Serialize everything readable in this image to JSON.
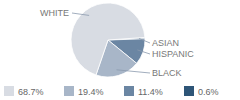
{
  "chart_data": {
    "type": "pie",
    "categories": [
      "WHITE",
      "BLACK",
      "HISPANIC",
      "ASIAN"
    ],
    "values": [
      68.7,
      19.4,
      11.4,
      0.6
    ],
    "value_labels": [
      "68.7%",
      "19.4%",
      "11.4%",
      "0.6%"
    ],
    "colors": [
      "#d8dce3",
      "#a8b6c8",
      "#6b86a3",
      "#2e5577"
    ]
  }
}
